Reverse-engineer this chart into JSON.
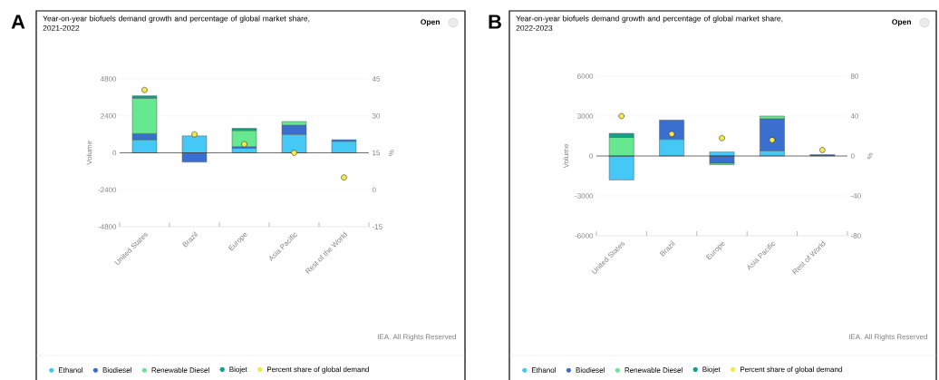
{
  "chart_data": [
    {
      "type": "bar",
      "title": "Year-on-year biofuels demand growth and percentage of global market share, 2021-2022",
      "stacked": true,
      "categories": [
        "United States",
        "Brazil",
        "Europe",
        "Asia Pacific",
        "Rest of the World"
      ],
      "ylabel": "Volume",
      "y2label": "%",
      "ylim": [
        -4800,
        4800
      ],
      "yticks": [
        -4800,
        -2400,
        0,
        2400,
        4800
      ],
      "y2lim": [
        -15,
        45
      ],
      "y2ticks": [
        -15,
        0,
        15,
        30,
        45
      ],
      "grid": "y",
      "legend": "bottom",
      "marker": "circle",
      "annotations": [
        "Open",
        "IEA. All Rights Reserved",
        "A"
      ],
      "ref_lines": [
        {
          "axis": "y",
          "value": 0,
          "color": "#333333"
        }
      ],
      "series": [
        {
          "name": "Ethanol",
          "color": "#45c8f5",
          "values": [
            850,
            1100,
            300,
            1200,
            750
          ]
        },
        {
          "name": "Biodiesel",
          "color": "#3a6fd0",
          "values": [
            400,
            -600,
            100,
            600,
            100
          ]
        },
        {
          "name": "Renewable Diesel",
          "color": "#66e890",
          "values": [
            2300,
            0,
            1050,
            230,
            0
          ]
        },
        {
          "name": "Biojet",
          "color": "#11a08a",
          "values": [
            150,
            0,
            140,
            0,
            0
          ]
        },
        {
          "name": "Percent share of global demand",
          "color": "#f5e94a",
          "type": "scatter",
          "axis": "y2",
          "values": [
            40.5,
            22.5,
            18.5,
            15,
            5
          ]
        }
      ]
    },
    {
      "type": "bar",
      "title": "Year-on-year biofuels demand growth and percentage of global market share, 2022-2023",
      "stacked": true,
      "categories": [
        "United States",
        "Brazil",
        "Europe",
        "Asia Pacific",
        "Rest of World"
      ],
      "ylabel": "Volume",
      "y2label": "%",
      "ylim": [
        -6000,
        6000
      ],
      "yticks": [
        -6000,
        -3000,
        0,
        3000,
        6000
      ],
      "y2lim": [
        -80,
        80
      ],
      "y2ticks": [
        -80,
        -40,
        0,
        40,
        80
      ],
      "grid": "y",
      "legend": "bottom",
      "marker": "circle",
      "annotations": [
        "Open",
        "IEA. All Rights Reserved",
        "B"
      ],
      "ref_lines": [
        {
          "axis": "y",
          "value": 0,
          "color": "#333333"
        }
      ],
      "series": [
        {
          "name": "Ethanol",
          "color": "#45c8f5",
          "values": [
            -1800,
            1250,
            300,
            400,
            0
          ]
        },
        {
          "name": "Biodiesel",
          "color": "#3a6fd0",
          "values": [
            0,
            1450,
            -550,
            2400,
            100
          ]
        },
        {
          "name": "Renewable Diesel",
          "color": "#66e890",
          "values": [
            1400,
            0,
            -100,
            200,
            0
          ]
        },
        {
          "name": "Biojet",
          "color": "#11a08a",
          "values": [
            300,
            0,
            0,
            0,
            0
          ]
        },
        {
          "name": "Percent share of global demand",
          "color": "#f5e94a",
          "type": "scatter",
          "axis": "y2",
          "values": [
            40,
            22,
            18,
            16,
            6
          ]
        }
      ]
    }
  ]
}
